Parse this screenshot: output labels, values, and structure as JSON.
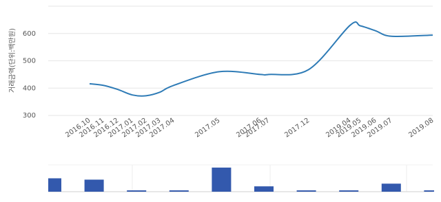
{
  "chart_data": [
    {
      "type": "line",
      "y_label": "거래금액(단위:백만원)",
      "categories": [
        "2016.10",
        "2016.11",
        "2016.12",
        "2017.01",
        "2017.02",
        "2017.03",
        "2017.04",
        "2017.05",
        "2017.06",
        "2017.07",
        "2017.12",
        "2019.04",
        "2019.05",
        "2019.06",
        "2019.07",
        "2019.08"
      ],
      "series": [
        {
          "color": "#2e7bb6",
          "values": [
            416,
            410,
            395,
            375,
            372,
            385,
            410,
            460,
            450,
            450,
            468,
            630,
            628,
            610,
            590,
            594
          ]
        }
      ],
      "ylim": [
        300,
        700
      ],
      "yticks": [
        300,
        400,
        500,
        600
      ],
      "grid": true
    },
    {
      "type": "bar",
      "color": "#3359ad",
      "categories": [
        null,
        null,
        null,
        null,
        null,
        null,
        null,
        null,
        null,
        null
      ],
      "values": [
        10,
        9,
        1,
        1,
        18,
        4,
        1,
        1,
        6,
        1
      ],
      "ylim": [
        0,
        20
      ]
    }
  ]
}
